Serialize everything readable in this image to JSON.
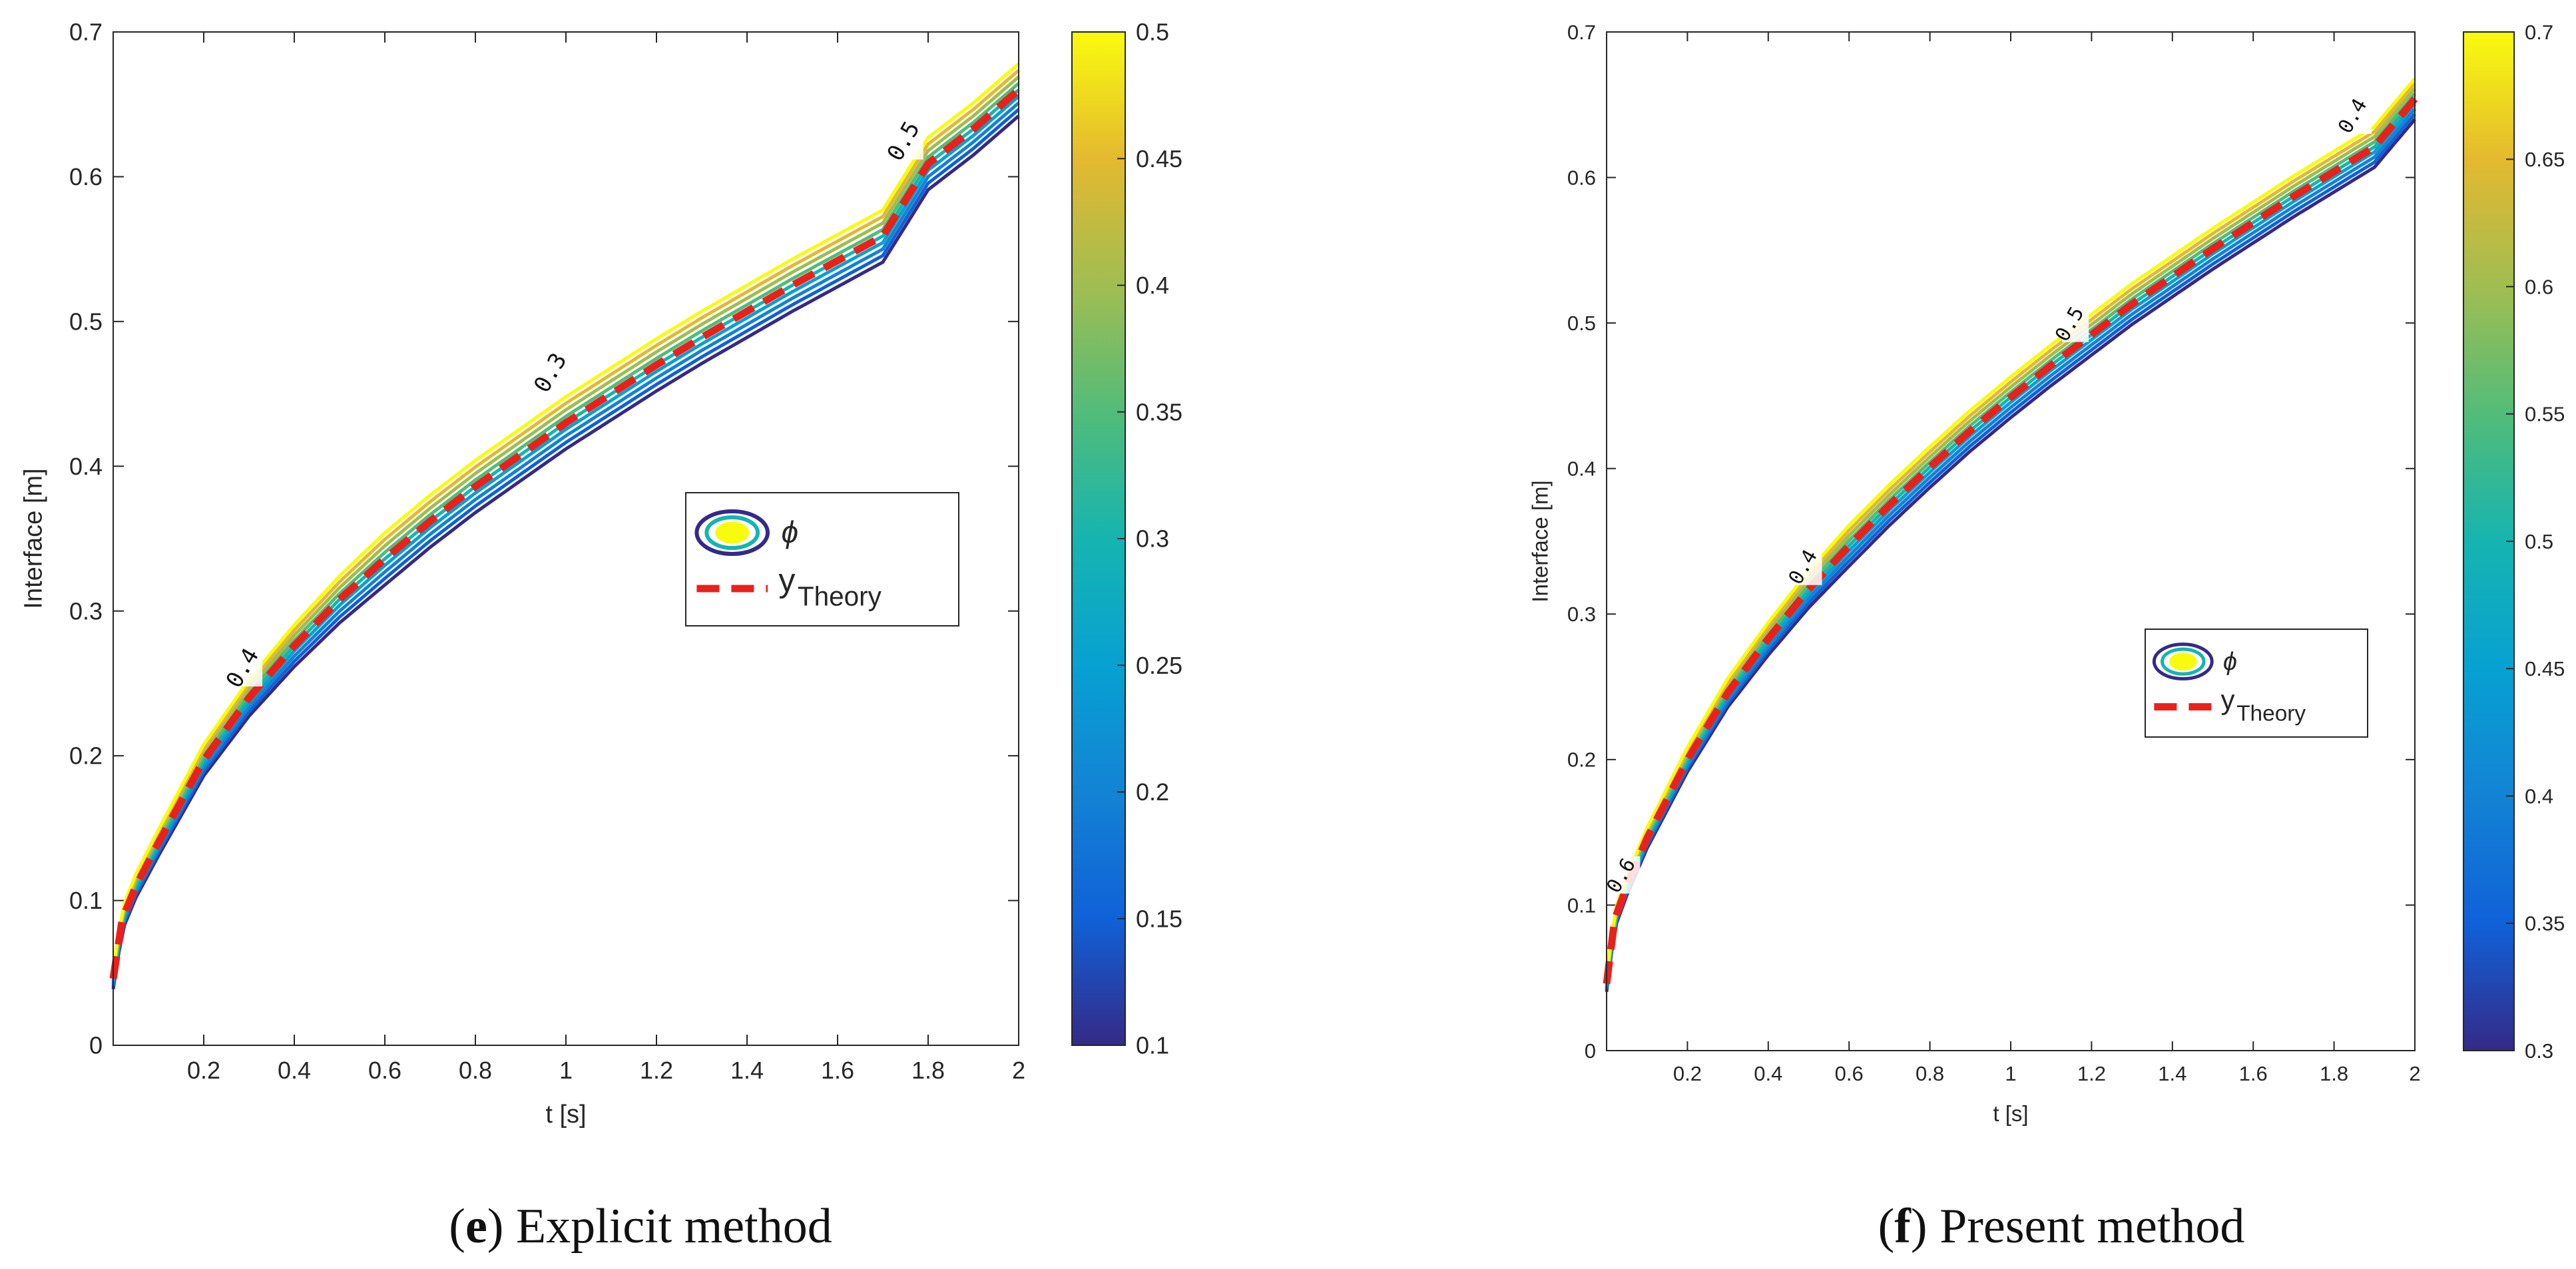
{
  "chart_data": [
    {
      "type": "contour",
      "panel_letter": "e",
      "caption_text": " Explicit method",
      "xlabel": "t [s]",
      "ylabel": "Interface [m]",
      "xlim": [
        0,
        2
      ],
      "ylim": [
        0,
        0.7
      ],
      "xticks": [
        0.2,
        0.4,
        0.6,
        0.8,
        1,
        1.2,
        1.4,
        1.6,
        1.8,
        2
      ],
      "yticks": [
        0,
        0.1,
        0.2,
        0.3,
        0.4,
        0.5,
        0.6,
        0.7
      ],
      "colorbar": {
        "range": [
          0.1,
          0.5
        ],
        "ticks": [
          0.1,
          0.15,
          0.2,
          0.25,
          0.3,
          0.35,
          0.4,
          0.45,
          0.5
        ]
      },
      "contour_levels": [
        0.1,
        0.15,
        0.2,
        0.25,
        0.3,
        0.35,
        0.4,
        0.45,
        0.5
      ],
      "contour_offset_span": 0.018,
      "contour_label_points": [
        {
          "t": 0.3,
          "y": 0.258,
          "text": "0.4"
        },
        {
          "t": 0.98,
          "y": 0.462,
          "text": "0.3"
        },
        {
          "t": 1.76,
          "y": 0.622,
          "text": "0.5"
        }
      ],
      "series": [
        {
          "name": "y_Theory",
          "x": [
            0.0,
            0.02,
            0.05,
            0.1,
            0.2,
            0.3,
            0.4,
            0.5,
            0.6,
            0.7,
            0.8,
            0.9,
            1.0,
            1.1,
            1.2,
            1.3,
            1.4,
            1.5,
            1.6,
            1.7,
            1.8,
            1.9,
            2.0
          ],
          "y": [
            0.046,
            0.087,
            0.11,
            0.14,
            0.197,
            0.24,
            0.276,
            0.308,
            0.336,
            0.362,
            0.386,
            0.408,
            0.43,
            0.45,
            0.47,
            0.489,
            0.507,
            0.525,
            0.542,
            0.559,
            0.609,
            0.633,
            0.66
          ]
        }
      ],
      "legend": {
        "entries": [
          {
            "symbol": "phi",
            "label": "ϕ"
          },
          {
            "label_main": "y",
            "label_sub": "Theory"
          }
        ],
        "placement": "center-right"
      }
    },
    {
      "type": "contour",
      "panel_letter": "f",
      "caption_text": " Present method",
      "xlabel": "t [s]",
      "ylabel": "Interface [m]",
      "xlim": [
        0,
        2
      ],
      "ylim": [
        0,
        0.7
      ],
      "xticks": [
        0.2,
        0.4,
        0.6,
        0.8,
        1,
        1.2,
        1.4,
        1.6,
        1.8,
        2
      ],
      "yticks": [
        0,
        0.1,
        0.2,
        0.3,
        0.4,
        0.5,
        0.6,
        0.7
      ],
      "colorbar": {
        "range": [
          0.3,
          0.7
        ],
        "ticks": [
          0.3,
          0.35,
          0.4,
          0.45,
          0.5,
          0.55,
          0.6,
          0.65,
          0.7
        ]
      },
      "contour_levels": [
        0.3,
        0.35,
        0.4,
        0.45,
        0.5,
        0.55,
        0.6,
        0.65,
        0.7
      ],
      "contour_offset_span": 0.014,
      "contour_label_points": [
        {
          "t": 0.05,
          "y": 0.118,
          "text": "0.6"
        },
        {
          "t": 0.5,
          "y": 0.33,
          "text": "0.4"
        },
        {
          "t": 1.16,
          "y": 0.497,
          "text": "0.5"
        },
        {
          "t": 1.86,
          "y": 0.64,
          "text": "0.4"
        }
      ],
      "series": [
        {
          "name": "y_Theory",
          "x": [
            0.0,
            0.02,
            0.05,
            0.1,
            0.2,
            0.3,
            0.4,
            0.5,
            0.6,
            0.7,
            0.8,
            0.9,
            1.0,
            1.1,
            1.2,
            1.3,
            1.4,
            1.5,
            1.6,
            1.7,
            1.8,
            1.9,
            2.0
          ],
          "y": [
            0.046,
            0.09,
            0.113,
            0.146,
            0.2,
            0.246,
            0.283,
            0.317,
            0.347,
            0.375,
            0.401,
            0.426,
            0.449,
            0.471,
            0.492,
            0.513,
            0.532,
            0.551,
            0.569,
            0.587,
            0.604,
            0.621,
            0.654
          ]
        }
      ],
      "legend": {
        "entries": [
          {
            "symbol": "phi",
            "label": "ϕ"
          },
          {
            "label_main": "y",
            "label_sub": "Theory"
          }
        ],
        "placement": "center-right"
      }
    }
  ]
}
